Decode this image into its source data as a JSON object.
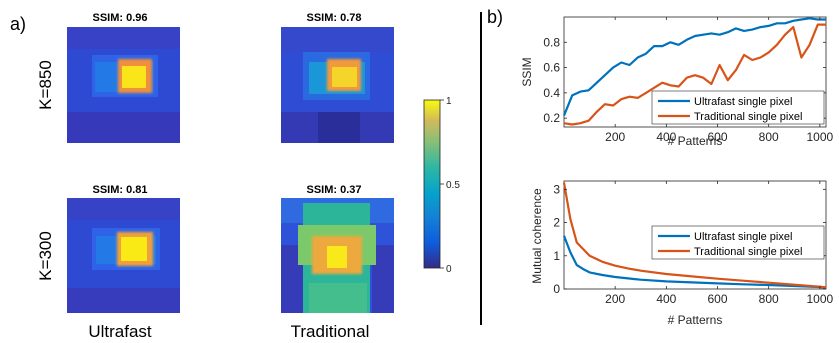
{
  "panel_labels": {
    "a": "a)",
    "b": "b)"
  },
  "images": {
    "rows": [
      "K=850",
      "K=300"
    ],
    "cols": [
      "Ultrafast",
      "Traditional"
    ],
    "ssim_titles": [
      [
        "SSIM: 0.96",
        "SSIM: 0.78"
      ],
      [
        "SSIM: 0.81",
        "SSIM: 0.37"
      ]
    ]
  },
  "colorbar": {
    "ticks": [
      "1",
      "0.5",
      "0"
    ],
    "range": [
      0,
      1
    ]
  },
  "colors": {
    "ultrafast": "#0072BD",
    "traditional": "#D95319"
  },
  "chart_data": [
    {
      "type": "line",
      "xlabel": "# Patterns",
      "ylabel": "SSIM",
      "xlim": [
        0,
        1024
      ],
      "ylim": [
        0.13,
        1.0
      ],
      "xticks": [
        200,
        400,
        600,
        800,
        1000
      ],
      "yticks": [
        0.2,
        0.4,
        0.6,
        0.8
      ],
      "legend": "bottom-right",
      "series": [
        {
          "name": "Ultrafast single pixel",
          "x": [
            0,
            32,
            64,
            96,
            128,
            160,
            192,
            224,
            256,
            288,
            320,
            352,
            384,
            416,
            448,
            480,
            512,
            544,
            576,
            608,
            640,
            672,
            704,
            736,
            768,
            800,
            832,
            864,
            896,
            928,
            960,
            992,
            1024
          ],
          "y": [
            0.22,
            0.38,
            0.41,
            0.42,
            0.48,
            0.54,
            0.6,
            0.64,
            0.62,
            0.68,
            0.71,
            0.77,
            0.77,
            0.8,
            0.78,
            0.82,
            0.85,
            0.86,
            0.87,
            0.86,
            0.88,
            0.91,
            0.89,
            0.9,
            0.92,
            0.93,
            0.95,
            0.95,
            0.97,
            0.98,
            0.99,
            0.98,
            0.98
          ]
        },
        {
          "name": "Traditional single pixel",
          "x": [
            0,
            32,
            64,
            96,
            128,
            160,
            192,
            224,
            256,
            288,
            320,
            352,
            384,
            416,
            448,
            480,
            512,
            544,
            576,
            608,
            640,
            672,
            704,
            736,
            768,
            800,
            832,
            864,
            896,
            928,
            960,
            992,
            1024
          ],
          "y": [
            0.16,
            0.15,
            0.16,
            0.18,
            0.25,
            0.31,
            0.3,
            0.35,
            0.37,
            0.36,
            0.4,
            0.44,
            0.48,
            0.46,
            0.45,
            0.52,
            0.54,
            0.52,
            0.47,
            0.62,
            0.5,
            0.58,
            0.7,
            0.66,
            0.68,
            0.72,
            0.78,
            0.86,
            0.92,
            0.68,
            0.78,
            0.94,
            0.94
          ]
        }
      ]
    },
    {
      "type": "line",
      "xlabel": "# Patterns",
      "ylabel": "Mutual coherence",
      "xlim": [
        0,
        1024
      ],
      "ylim": [
        0,
        3.25
      ],
      "xticks": [
        200,
        400,
        600,
        800,
        1000
      ],
      "yticks": [
        0,
        1,
        2,
        3
      ],
      "legend": "top-right",
      "series": [
        {
          "name": "Ultrafast single pixel",
          "x": [
            0,
            25,
            50,
            75,
            100,
            150,
            200,
            250,
            300,
            400,
            500,
            600,
            700,
            800,
            900,
            1000,
            1024
          ],
          "y": [
            1.6,
            1.1,
            0.72,
            0.6,
            0.5,
            0.42,
            0.36,
            0.32,
            0.28,
            0.23,
            0.2,
            0.17,
            0.14,
            0.12,
            0.09,
            0.06,
            0.04
          ]
        },
        {
          "name": "Traditional single pixel",
          "x": [
            0,
            25,
            50,
            75,
            100,
            150,
            200,
            250,
            300,
            400,
            500,
            600,
            700,
            800,
            900,
            1000,
            1024
          ],
          "y": [
            3.2,
            2.1,
            1.4,
            1.2,
            1.0,
            0.82,
            0.7,
            0.62,
            0.55,
            0.45,
            0.38,
            0.31,
            0.25,
            0.19,
            0.13,
            0.07,
            0.05
          ]
        }
      ]
    }
  ]
}
